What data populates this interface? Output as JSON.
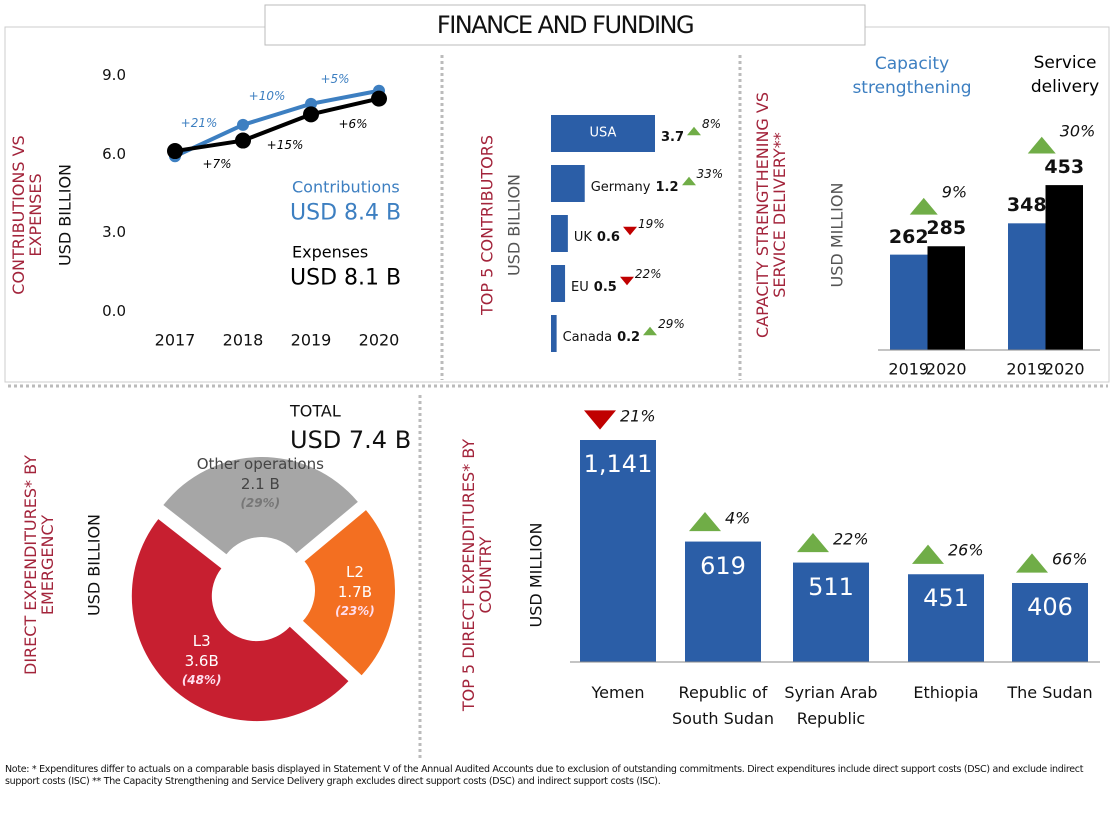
{
  "title": "FINANCE AND FUNDING",
  "chart_data": [
    {
      "type": "line",
      "y_label": "CONTRIBUTIONS VS EXPENSES",
      "y_unit": "USD BILLION",
      "categories": [
        "2017",
        "2018",
        "2019",
        "2020"
      ],
      "ylim": [
        0,
        9
      ],
      "yticks": [
        {
          "value": 0,
          "label": "0.0"
        },
        {
          "value": 3,
          "label": "3.0"
        },
        {
          "value": 6,
          "label": "6.0"
        },
        {
          "value": 9,
          "label": "9.0"
        }
      ],
      "series": [
        {
          "name": "Contributions",
          "color": "#3d7fc1",
          "values": [
            5.9,
            7.1,
            7.9,
            8.4
          ],
          "changes": [
            "+21%",
            "+10%",
            "+5%"
          ],
          "total": "USD 8.4 B"
        },
        {
          "name": "Expenses",
          "color": "#000000",
          "values": [
            6.1,
            6.5,
            7.5,
            8.1
          ],
          "changes": [
            "+7%",
            "+15%",
            "+6%"
          ],
          "total": "USD 8.1 B"
        }
      ]
    },
    {
      "type": "hbar",
      "y_label": "TOP 5 CONTRIBUTORS",
      "y_unit": "USD BILLION",
      "categories": [
        "USA",
        "Germany",
        "UK",
        "EU",
        "Canada"
      ],
      "values": [
        3.7,
        1.2,
        0.6,
        0.5,
        0.2
      ],
      "color": "#2b5ea7",
      "changes": [
        "8%",
        "33%",
        "19%",
        "22%",
        "29%"
      ],
      "change_directions": [
        "up",
        "up",
        "down",
        "down",
        "up"
      ]
    },
    {
      "type": "grouped_bar",
      "y_label": "CAPACITY STRENGTHENING VS SERVICE DELIVERY**",
      "y_unit": "USD MILLION",
      "categories": [
        "Capacity strengthening",
        "Service delivery"
      ],
      "category_colors": [
        "#3d7fc1",
        "#000000"
      ],
      "series": [
        {
          "name": "2019",
          "color": "#2b5ea7",
          "values": [
            262,
            348
          ]
        },
        {
          "name": "2020",
          "color": "#000000",
          "values": [
            285,
            453
          ]
        }
      ],
      "changes": [
        "9%",
        "30%"
      ],
      "change_directions": [
        "up",
        "up"
      ]
    },
    {
      "type": "pie",
      "y_label": "DIRECT EXPENDITURES* BY EMERGENCY",
      "y_unit": "USD BILLION",
      "total_label": "TOTAL",
      "total": "USD 7.4 B",
      "categories": [
        "Other operations",
        "L2",
        "L3"
      ],
      "values": [
        2.1,
        1.7,
        3.6
      ],
      "value_labels": [
        "2.1 B",
        "1.7B",
        "3.6B"
      ],
      "percent_labels": [
        "(29%)",
        "(23%)",
        "(48%)"
      ],
      "colors": [
        "#a6a6a6",
        "#f36f21",
        "#c71f30"
      ]
    },
    {
      "type": "bar",
      "y_label": "TOP 5 DIRECT EXPENDITURES* BY COUNTRY",
      "y_unit": "USD MILLION",
      "categories": [
        "Yemen",
        "Republic of South Sudan",
        "Syrian Arab Republic",
        "Ethiopia",
        "The Sudan"
      ],
      "values": [
        1141,
        619,
        511,
        451,
        406
      ],
      "value_labels": [
        "1,141",
        "619",
        "511",
        "451",
        "406"
      ],
      "color": "#2b5ea7",
      "changes": [
        "21%",
        "4%",
        "22%",
        "26%",
        "66%"
      ],
      "change_directions": [
        "down",
        "up",
        "up",
        "up",
        "up"
      ]
    }
  ],
  "note": "Note: * Expenditures differ to actuals on a comparable basis displayed in Statement V of the Annual Audited Accounts due to exclusion of outstanding commitments.  Direct expenditures include direct support costs (DSC) and exclude indirect support costs (ISC) ** The Capacity Strengthening and Service Delivery graph excludes direct support costs (DSC) and indirect support costs (ISC)."
}
